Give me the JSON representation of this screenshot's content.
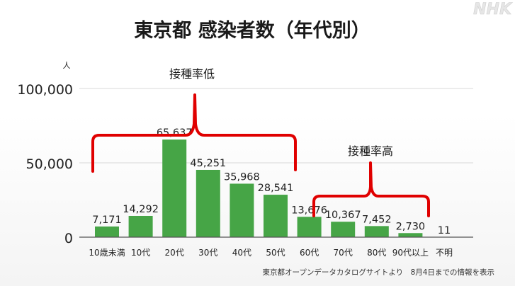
{
  "watermark": "NHK",
  "source_note": "東京都オープンデータカタログサイトより　8月4日までの情報を表示",
  "annotations": {
    "low": "接種率低",
    "high": "接種率高"
  },
  "colors": {
    "bar": "#46a546",
    "brace": "#e00000",
    "grid": "#d8d8d8",
    "text": "#222222"
  },
  "chart_data": {
    "type": "bar",
    "title": "東京都 感染者数（年代別）",
    "ylabel": "人",
    "xlabel": "",
    "ylim": [
      0,
      100000
    ],
    "yticks": [
      0,
      50000,
      100000
    ],
    "ytick_labels": [
      "0",
      "50,000",
      "100,000"
    ],
    "grid": true,
    "categories": [
      "10歳未満",
      "10代",
      "20代",
      "30代",
      "40代",
      "50代",
      "60代",
      "70代",
      "80代",
      "90代以上",
      "不明"
    ],
    "values": [
      7171,
      14292,
      65637,
      45251,
      35968,
      28541,
      13676,
      10367,
      7452,
      2730,
      11
    ],
    "value_labels": [
      "7,171",
      "14,292",
      "65,637",
      "45,251",
      "35,968",
      "28,541",
      "13,676",
      "10,367",
      "7,452",
      "2,730",
      "11"
    ]
  }
}
